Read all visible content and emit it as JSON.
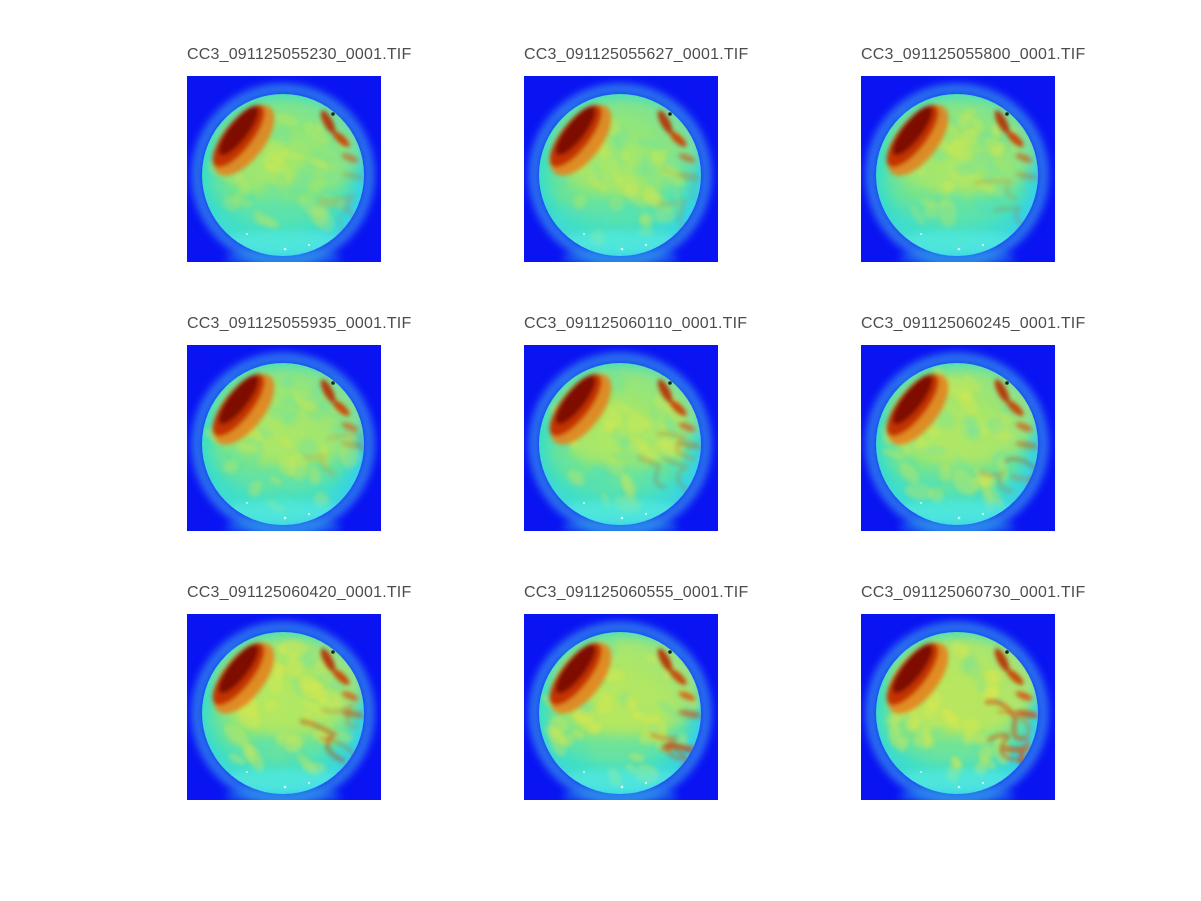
{
  "figure": {
    "background": "#ffffff",
    "title_color": "#4c4c4c"
  },
  "chart_data": {
    "type": "heatmap",
    "title": "",
    "description": "3x3 montage of fisheye all-sky camera frames (CC3 camera, 2009-11-25, 05:52-06:07 UTC) rendered in a jet false-color map; a warm (red/dark-red) arc sits on the upper-left rim of each sky disk and the cloud field warms from green toward yellow/orange over the sequence",
    "colormap": "jet",
    "grid": {
      "rows": 3,
      "cols": 3
    },
    "legend": "none",
    "axes": "hidden",
    "titles": [
      "CC3_091125055230_0001.TIF",
      "CC3_091125055627_0001.TIF",
      "CC3_091125055800_0001.TIF",
      "CC3_091125055935_0001.TIF",
      "CC3_091125060110_0001.TIF",
      "CC3_091125060245_0001.TIF",
      "CC3_091125060420_0001.TIF",
      "CC3_091125060555_0001.TIF",
      "CC3_091125060730_0001.TIF"
    ],
    "images": [
      {
        "title": "CC3_091125055230_0001.TIF",
        "warmth": 0.28,
        "streaks": 0.25
      },
      {
        "title": "CC3_091125055627_0001.TIF",
        "warmth": 0.32,
        "streaks": 0.28
      },
      {
        "title": "CC3_091125055800_0001.TIF",
        "warmth": 0.36,
        "streaks": 0.35
      },
      {
        "title": "CC3_091125055935_0001.TIF",
        "warmth": 0.45,
        "streaks": 0.32
      },
      {
        "title": "CC3_091125060110_0001.TIF",
        "warmth": 0.5,
        "streaks": 0.42
      },
      {
        "title": "CC3_091125060245_0001.TIF",
        "warmth": 0.58,
        "streaks": 0.55
      },
      {
        "title": "CC3_091125060420_0001.TIF",
        "warmth": 0.66,
        "streaks": 0.62
      },
      {
        "title": "CC3_091125060555_0001.TIF",
        "warmth": 0.72,
        "streaks": 0.78
      },
      {
        "title": "CC3_091125060730_0001.TIF",
        "warmth": 0.82,
        "streaks": 0.95
      }
    ],
    "palette": {
      "background_blue": "#0a14f2",
      "halo_blue": "#38aee8",
      "disk_green": "#5ee49c",
      "disk_cyan": "#3cd9e6",
      "warm_yellow": "#dbe84c",
      "orange": "#e87d18",
      "red": "#c22f02",
      "dark_red": "#7e0c00"
    }
  }
}
